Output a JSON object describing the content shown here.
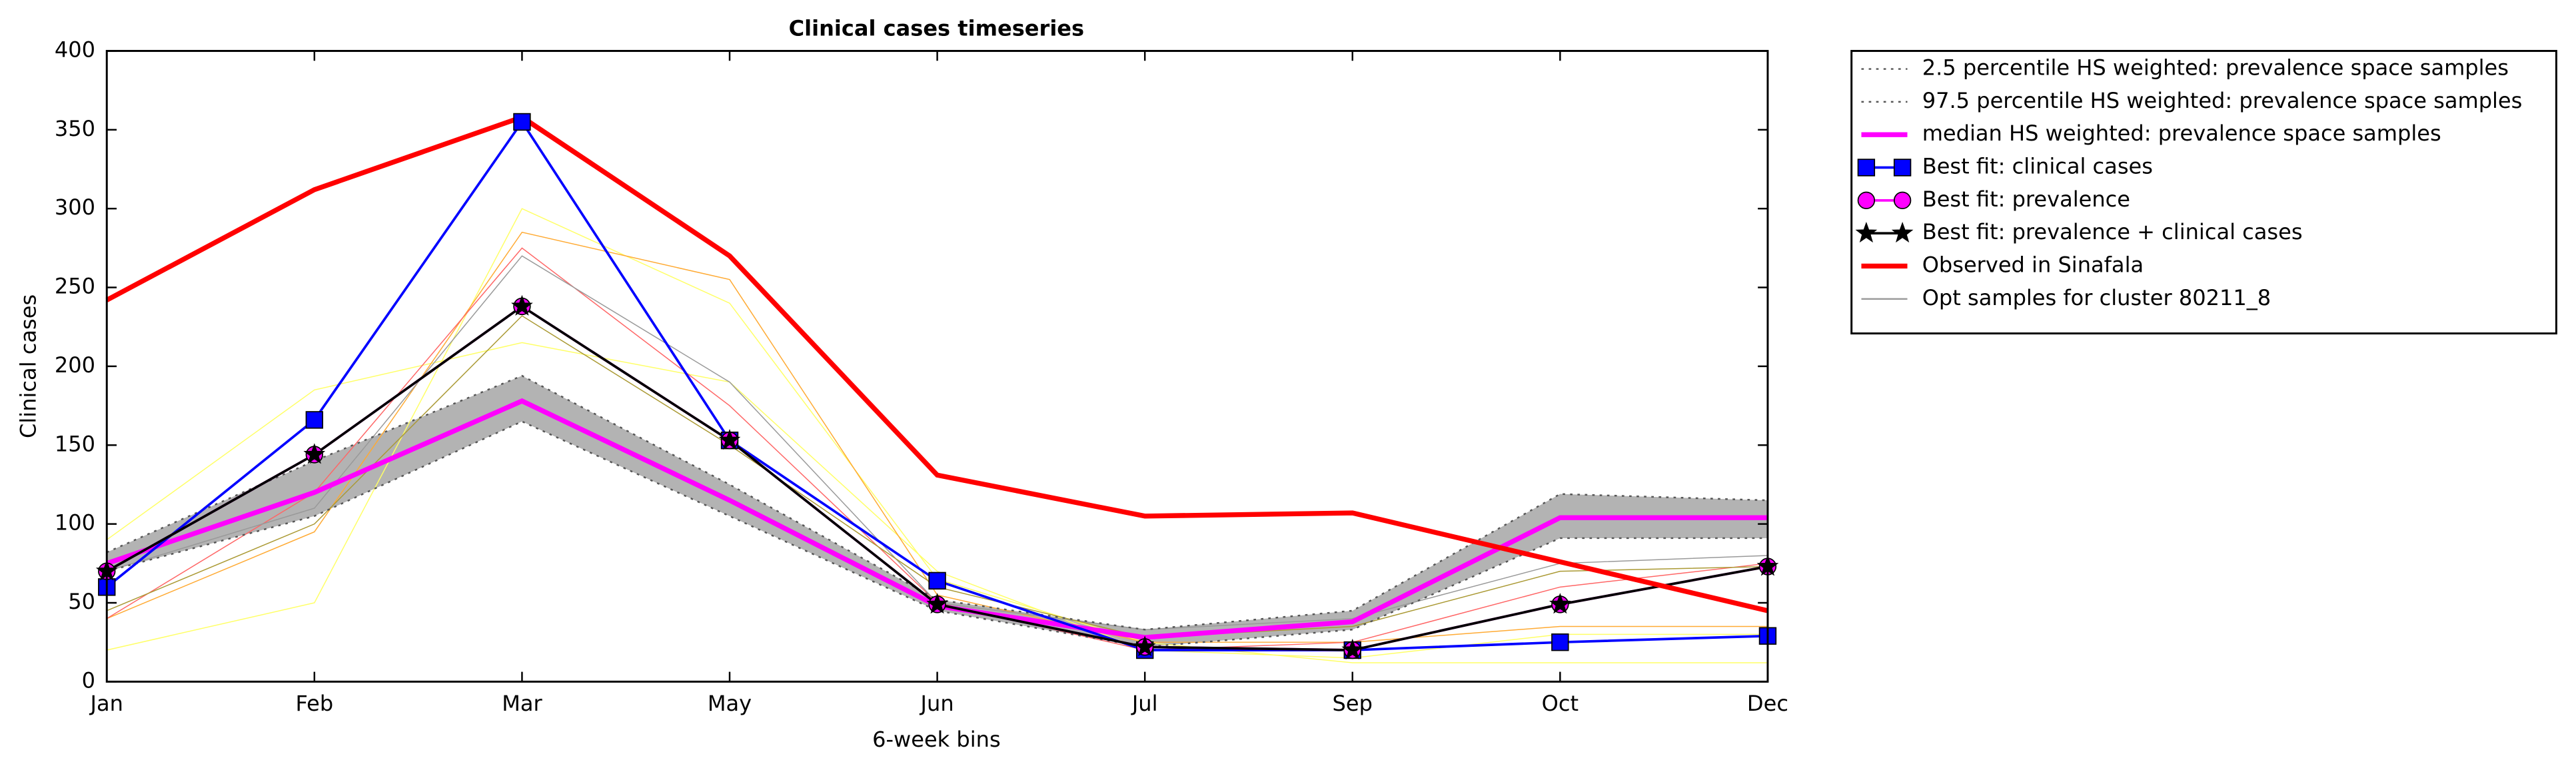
{
  "chart_data": {
    "type": "line",
    "title": "Clinical cases timeseries",
    "xlabel": "6-week bins",
    "ylabel": "Clinical cases",
    "categories": [
      "Jan",
      "Feb",
      "Mar",
      "May",
      "Jun",
      "Jul",
      "Sep",
      "Oct",
      "Dec"
    ],
    "ylim": [
      0,
      400
    ],
    "yticks": [
      0,
      50,
      100,
      150,
      200,
      250,
      300,
      350,
      400
    ],
    "legend": "outside-upper-right",
    "band": {
      "color": "#b3b3b3",
      "lower": 0,
      "upper": 1
    },
    "series": [
      {
        "name": "2.5 percentile HS weighted: prevalence space samples",
        "color": "#555555",
        "linestyle": "dotted",
        "width": 1,
        "values": [
          70,
          105,
          165,
          105,
          45,
          22,
          33,
          91,
          91
        ]
      },
      {
        "name": "97.5 percentile HS weighted: prevalence space samples",
        "color": "#555555",
        "linestyle": "dotted",
        "width": 1,
        "values": [
          82,
          140,
          194,
          125,
          52,
          33,
          45,
          119,
          115
        ]
      },
      {
        "name": "median HS weighted: prevalence space samples",
        "color": "#ff00ff",
        "width": 3,
        "values": [
          75,
          120,
          178,
          115,
          48,
          28,
          38,
          104,
          104
        ]
      },
      {
        "name": "Best fit: clinical cases",
        "color": "#0000ff",
        "marker": "square",
        "width": 1.5,
        "values": [
          60,
          166,
          355,
          153,
          64,
          20,
          20,
          25,
          29
        ]
      },
      {
        "name": "Best fit: prevalence",
        "color": "#ff00ff",
        "marker": "circle",
        "width": 1.5,
        "values": [
          70,
          144,
          238,
          153,
          49,
          22,
          20,
          49,
          73
        ]
      },
      {
        "name": "Best fit: prevalence + clinical cases",
        "color": "#000000",
        "marker": "star",
        "width": 1.5,
        "values": [
          70,
          144,
          238,
          153,
          49,
          22,
          20,
          49,
          73
        ]
      },
      {
        "name": "Observed in Sinafala",
        "color": "#ff0000",
        "width": 3,
        "values": [
          242,
          312,
          358,
          270,
          131,
          105,
          107,
          76,
          45
        ]
      },
      {
        "name": "Opt samples for cluster 80211_8",
        "color": "#999999",
        "width": 0.6,
        "lines": [
          {
            "color": "#ffff66",
            "values": [
              20,
              50,
              300,
              240,
              65,
              25,
              12,
              12,
              12
            ]
          },
          {
            "color": "#ffff66",
            "values": [
              90,
              185,
              215,
              190,
              70,
              20,
              15,
              30,
              30
            ]
          },
          {
            "color": "#ffaa33",
            "values": [
              40,
              95,
              285,
              255,
              55,
              25,
              25,
              35,
              35
            ]
          },
          {
            "color": "#ff6666",
            "values": [
              40,
              120,
              275,
              175,
              50,
              20,
              25,
              60,
              75
            ]
          },
          {
            "color": "#999999",
            "values": [
              70,
              110,
              270,
              190,
              50,
              33,
              40,
              75,
              80
            ]
          },
          {
            "color": "#aa9933",
            "values": [
              45,
              100,
              232,
              150,
              60,
              28,
              35,
              70,
              73
            ]
          }
        ]
      }
    ]
  }
}
